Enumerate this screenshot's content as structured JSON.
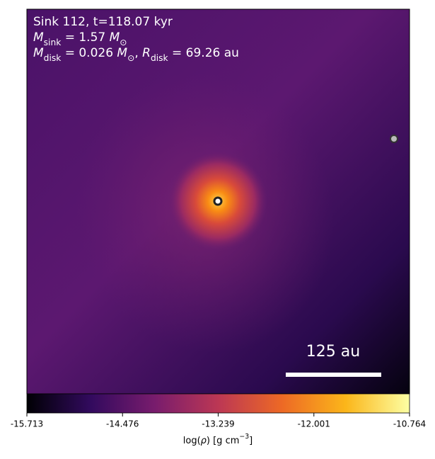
{
  "chart_data": {
    "type": "density-map",
    "annotation_lines": [
      [
        {
          "t": "Sink 112, t=118.07 kyr"
        }
      ],
      [
        {
          "t": "M",
          "i": true
        },
        {
          "t": "sink",
          "sub": true
        },
        {
          "t": " = 1.57 "
        },
        {
          "t": "M",
          "i": true
        },
        {
          "t": "⊙",
          "sub": true
        }
      ],
      [
        {
          "t": "M",
          "i": true
        },
        {
          "t": "disk",
          "sub": true
        },
        {
          "t": " = 0.026 "
        },
        {
          "t": "M",
          "i": true
        },
        {
          "t": "⊙",
          "sub": true
        },
        {
          "t": ", "
        },
        {
          "t": "R",
          "i": true
        },
        {
          "t": "disk",
          "sub": true
        },
        {
          "t": " = 69.26 au"
        }
      ]
    ],
    "scale_bar_label": "125 au",
    "colorbar_label": [
      {
        "t": "log("
      },
      {
        "t": "ρ",
        "i": true
      },
      {
        "t": ") [g cm"
      },
      {
        "t": "−3",
        "sup": true
      },
      {
        "t": "]"
      }
    ],
    "clim": [
      -15.713,
      -10.764
    ],
    "cticks": [
      -15.713,
      -14.476,
      -13.239,
      -12.001,
      -10.764
    ],
    "colormap": [
      "#000004",
      "#320a5e",
      "#781c6d",
      "#bc3754",
      "#ed6925",
      "#fbb61a",
      "#fcffa4"
    ]
  }
}
